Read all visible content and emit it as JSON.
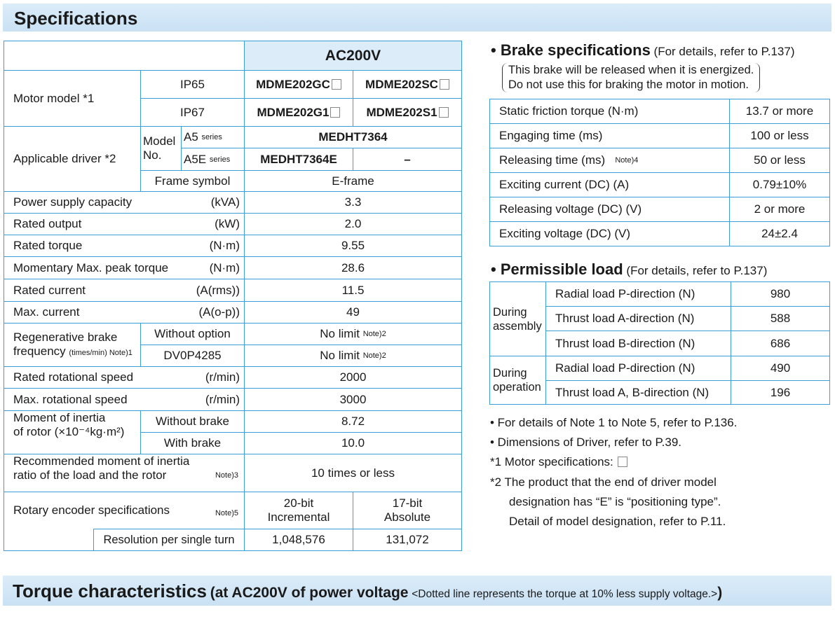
{
  "title": "Specifications",
  "spec": {
    "voltage": "AC200V",
    "motor_model_label": "Motor model *1",
    "ip65": "IP65",
    "ip67": "IP67",
    "models": [
      "MDME202GC",
      "MDME202SC",
      "MDME202G1",
      "MDME202S1"
    ],
    "driver_label": "Applicable driver *2",
    "model_no": "Model No.",
    "a5": "A5",
    "a5e": "A5E",
    "series": "series",
    "a5_driver": "MEDHT7364",
    "a5e_driver": "MEDHT7364E",
    "a5e_dash": "–",
    "frame_label": "Frame symbol",
    "frame": "E-frame",
    "rows": [
      {
        "label": "Power supply capacity",
        "unit": "(kVA)",
        "value": "3.3"
      },
      {
        "label": "Rated output",
        "unit": "(kW)",
        "value": "2.0"
      },
      {
        "label": "Rated torque",
        "unit": "(N·m)",
        "value": "9.55"
      },
      {
        "label": "Momentary Max. peak torque",
        "unit": "(N·m)",
        "value": "28.6"
      },
      {
        "label": "Rated current",
        "unit": "(A(rms))",
        "value": "11.5"
      },
      {
        "label": "Max. current",
        "unit": "(A(o-p))",
        "value": "49"
      }
    ],
    "regen_label": "Regenerative brake",
    "regen_label2": "frequency",
    "regen_unit": "(times/min) Note)1",
    "regen_rows": [
      {
        "opt": "Without option",
        "value": "No limit",
        "note": "Note)2"
      },
      {
        "opt": "DV0P4285",
        "value": "No limit",
        "note": "Note)2"
      }
    ],
    "speed_rows": [
      {
        "label": "Rated rotational speed",
        "unit": "(r/min)",
        "value": "2000"
      },
      {
        "label": "Max. rotational speed",
        "unit": "(r/min)",
        "value": "3000"
      }
    ],
    "inertia_label1": "Moment of inertia",
    "inertia_label2": "of rotor (×10⁻⁴kg·m²)",
    "inertia_rows": [
      {
        "opt": "Without brake",
        "value": "8.72"
      },
      {
        "opt": "With brake",
        "value": "10.0"
      }
    ],
    "ratio_label1": "Recommended moment of inertia",
    "ratio_label2": "ratio of the load and the rotor",
    "ratio_note": "Note)3",
    "ratio_value": "10 times or less",
    "encoder_label": "Rotary encoder specifications",
    "encoder_note": "Note)5",
    "encoder": [
      "20-bit",
      "Incremental",
      "17-bit",
      "Absolute"
    ],
    "resolution_label": "Resolution per single turn",
    "resolution": [
      "1,048,576",
      "131,072"
    ]
  },
  "brake": {
    "title": "• Brake specifications",
    "ref": "(For details, refer to P.137)",
    "note1": "This brake will be released when it is energized.",
    "note2": "Do not use this for braking the motor in motion.",
    "rows": [
      {
        "label": "Static friction torque (N·m)",
        "note": "",
        "value": "13.7 or more"
      },
      {
        "label": "Engaging time (ms)",
        "note": "",
        "value": "100 or less"
      },
      {
        "label": "Releasing time (ms)",
        "note": "Note)4",
        "value": "50 or less"
      },
      {
        "label": "Exciting current (DC) (A)",
        "note": "",
        "value": "0.79±10%"
      },
      {
        "label": "Releasing voltage (DC) (V)",
        "note": "",
        "value": "2 or more"
      },
      {
        "label": "Exciting voltage (DC) (V)",
        "note": "",
        "value": "24±2.4"
      }
    ]
  },
  "load": {
    "title": "• Permissible load",
    "ref": "(For details, refer to P.137)",
    "assembly": "During assembly",
    "operation": "During operation",
    "rows": [
      {
        "label": "Radial load P-direction (N)",
        "value": "980"
      },
      {
        "label": "Thrust load A-direction (N)",
        "value": "588"
      },
      {
        "label": "Thrust load B-direction (N)",
        "value": "686"
      },
      {
        "label": "Radial load P-direction (N)",
        "value": "490"
      },
      {
        "label": "Thrust load A, B-direction (N)",
        "value": "196"
      }
    ]
  },
  "notes": [
    "• For details of Note 1 to Note 5, refer to P.136.",
    "• Dimensions of Driver, refer to P.39.",
    "*1 Motor specifications: ",
    "*2 The product that the end of driver model",
    "designation has “E” is “positioning type”.",
    "Detail of model designation, refer to P.11."
  ],
  "torque": {
    "title": "Torque characteristics",
    "sub": "(at AC200V of power voltage",
    "small": "<Dotted line represents the torque at 10% less supply voltage.>",
    "close": ")"
  },
  "colors": {
    "border": "#3b9fd6",
    "header_bg": "#dcecf9"
  }
}
